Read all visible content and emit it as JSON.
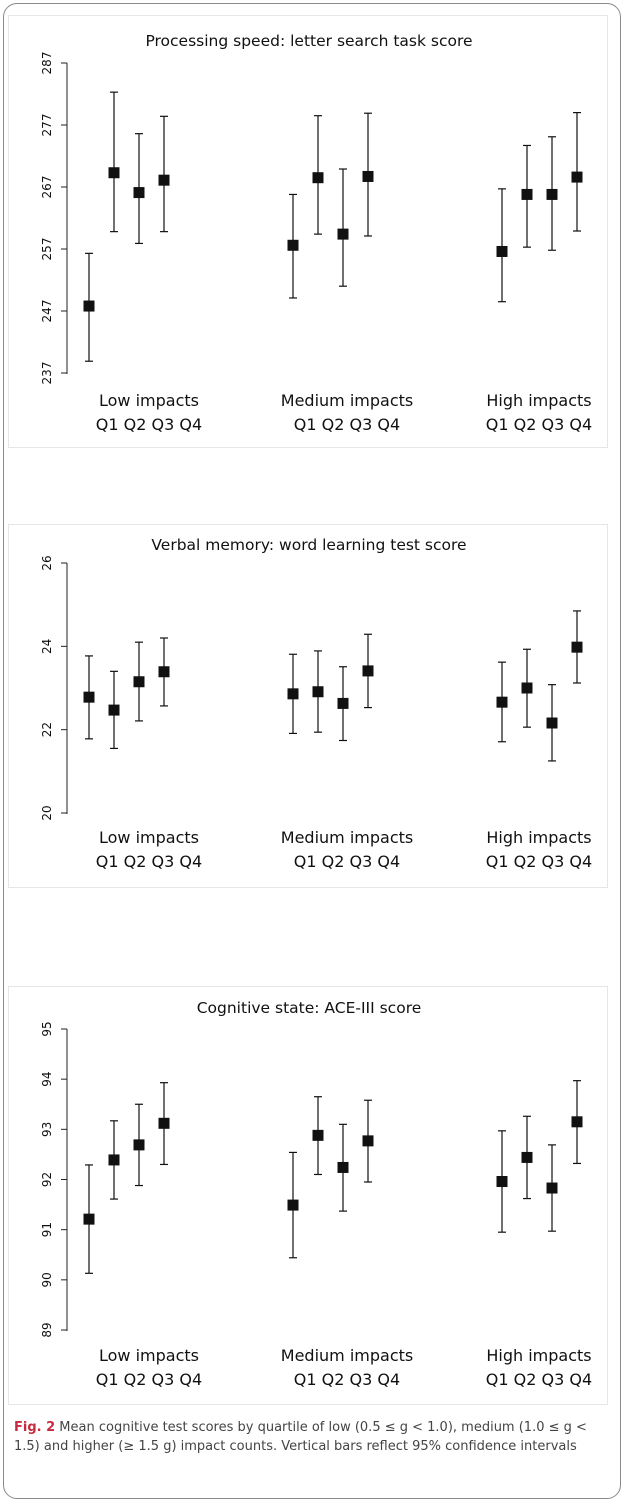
{
  "caption": {
    "label": "Fig. 2",
    "text": "Mean cognitive test scores by quartile of low (0.5 ≤ g < 1.0), medium (1.0 ≤ g < 1.5) and higher (≥ 1.5 g) impact counts. Vertical bars reflect 95% confidence intervals"
  },
  "chart_data": [
    {
      "type": "scatter",
      "title": "Processing speed: letter search task score",
      "ylim": [
        237,
        287
      ],
      "yticks": [
        "237",
        "247",
        "257",
        "267",
        "277",
        "287"
      ],
      "groups": [
        "Low impacts",
        "Medium impacts",
        "High impacts"
      ],
      "quartiles": [
        "Q1",
        "Q2",
        "Q3",
        "Q4"
      ],
      "points": [
        {
          "group": "Low impacts",
          "quartile": "Q1",
          "mean": 247.8,
          "lo": 238.9,
          "hi": 256.3
        },
        {
          "group": "Low impacts",
          "quartile": "Q2",
          "mean": 269.3,
          "lo": 259.8,
          "hi": 282.3
        },
        {
          "group": "Low impacts",
          "quartile": "Q3",
          "mean": 266.1,
          "lo": 257.9,
          "hi": 275.6
        },
        {
          "group": "Low impacts",
          "quartile": "Q4",
          "mean": 268.1,
          "lo": 259.8,
          "hi": 278.4
        },
        {
          "group": "Medium impacts",
          "quartile": "Q1",
          "mean": 257.6,
          "lo": 249.1,
          "hi": 265.8
        },
        {
          "group": "Medium impacts",
          "quartile": "Q2",
          "mean": 268.5,
          "lo": 259.4,
          "hi": 278.5
        },
        {
          "group": "Medium impacts",
          "quartile": "Q3",
          "mean": 259.4,
          "lo": 251.0,
          "hi": 269.9
        },
        {
          "group": "Medium impacts",
          "quartile": "Q4",
          "mean": 268.7,
          "lo": 259.1,
          "hi": 278.9
        },
        {
          "group": "High impacts",
          "quartile": "Q1",
          "mean": 256.6,
          "lo": 248.5,
          "hi": 266.7
        },
        {
          "group": "High impacts",
          "quartile": "Q2",
          "mean": 265.8,
          "lo": 257.3,
          "hi": 273.7
        },
        {
          "group": "High impacts",
          "quartile": "Q3",
          "mean": 265.8,
          "lo": 256.8,
          "hi": 275.1
        },
        {
          "group": "High impacts",
          "quartile": "Q4",
          "mean": 268.6,
          "lo": 259.9,
          "hi": 279.0
        }
      ]
    },
    {
      "type": "scatter",
      "title": "Verbal memory: word learning test score",
      "ylim": [
        20,
        26
      ],
      "yticks": [
        "20",
        "22",
        "24",
        "26"
      ],
      "groups": [
        "Low impacts",
        "Medium impacts",
        "High impacts"
      ],
      "quartiles": [
        "Q1",
        "Q2",
        "Q3",
        "Q4"
      ],
      "points": [
        {
          "group": "Low impacts",
          "quartile": "Q1",
          "mean": 22.78,
          "lo": 21.78,
          "hi": 23.77
        },
        {
          "group": "Low impacts",
          "quartile": "Q2",
          "mean": 22.47,
          "lo": 21.55,
          "hi": 23.4
        },
        {
          "group": "Low impacts",
          "quartile": "Q3",
          "mean": 23.15,
          "lo": 22.21,
          "hi": 24.1
        },
        {
          "group": "Low impacts",
          "quartile": "Q4",
          "mean": 23.39,
          "lo": 22.57,
          "hi": 24.2
        },
        {
          "group": "Medium impacts",
          "quartile": "Q1",
          "mean": 22.86,
          "lo": 21.91,
          "hi": 23.81
        },
        {
          "group": "Medium impacts",
          "quartile": "Q2",
          "mean": 22.91,
          "lo": 21.94,
          "hi": 23.89
        },
        {
          "group": "Medium impacts",
          "quartile": "Q3",
          "mean": 22.63,
          "lo": 21.74,
          "hi": 23.51
        },
        {
          "group": "Medium impacts",
          "quartile": "Q4",
          "mean": 23.41,
          "lo": 22.53,
          "hi": 24.29
        },
        {
          "group": "High impacts",
          "quartile": "Q1",
          "mean": 22.66,
          "lo": 21.71,
          "hi": 23.62
        },
        {
          "group": "High impacts",
          "quartile": "Q2",
          "mean": 23.0,
          "lo": 22.06,
          "hi": 23.93
        },
        {
          "group": "High impacts",
          "quartile": "Q3",
          "mean": 22.16,
          "lo": 21.25,
          "hi": 23.08
        },
        {
          "group": "High impacts",
          "quartile": "Q4",
          "mean": 23.98,
          "lo": 23.12,
          "hi": 24.85
        }
      ]
    },
    {
      "type": "scatter",
      "title": "Cognitive state: ACE-III score",
      "ylim": [
        89,
        95
      ],
      "yticks": [
        "89",
        "90",
        "91",
        "92",
        "93",
        "94",
        "95"
      ],
      "groups": [
        "Low impacts",
        "Medium impacts",
        "High impacts"
      ],
      "quartiles": [
        "Q1",
        "Q2",
        "Q3",
        "Q4"
      ],
      "points": [
        {
          "group": "Low impacts",
          "quartile": "Q1",
          "mean": 91.21,
          "lo": 90.13,
          "hi": 92.29
        },
        {
          "group": "Low impacts",
          "quartile": "Q2",
          "mean": 92.39,
          "lo": 91.61,
          "hi": 93.17
        },
        {
          "group": "Low impacts",
          "quartile": "Q3",
          "mean": 92.69,
          "lo": 91.88,
          "hi": 93.5
        },
        {
          "group": "Low impacts",
          "quartile": "Q4",
          "mean": 93.12,
          "lo": 92.3,
          "hi": 93.93
        },
        {
          "group": "Medium impacts",
          "quartile": "Q1",
          "mean": 91.49,
          "lo": 90.44,
          "hi": 92.54
        },
        {
          "group": "Medium impacts",
          "quartile": "Q2",
          "mean": 92.88,
          "lo": 92.1,
          "hi": 93.65
        },
        {
          "group": "Medium impacts",
          "quartile": "Q3",
          "mean": 92.24,
          "lo": 91.37,
          "hi": 93.1
        },
        {
          "group": "Medium impacts",
          "quartile": "Q4",
          "mean": 92.77,
          "lo": 91.95,
          "hi": 93.58
        },
        {
          "group": "High impacts",
          "quartile": "Q1",
          "mean": 91.96,
          "lo": 90.95,
          "hi": 92.97
        },
        {
          "group": "High impacts",
          "quartile": "Q2",
          "mean": 92.44,
          "lo": 91.62,
          "hi": 93.26
        },
        {
          "group": "High impacts",
          "quartile": "Q3",
          "mean": 91.83,
          "lo": 90.97,
          "hi": 92.69
        },
        {
          "group": "High impacts",
          "quartile": "Q4",
          "mean": 93.15,
          "lo": 92.32,
          "hi": 93.97
        }
      ]
    }
  ]
}
